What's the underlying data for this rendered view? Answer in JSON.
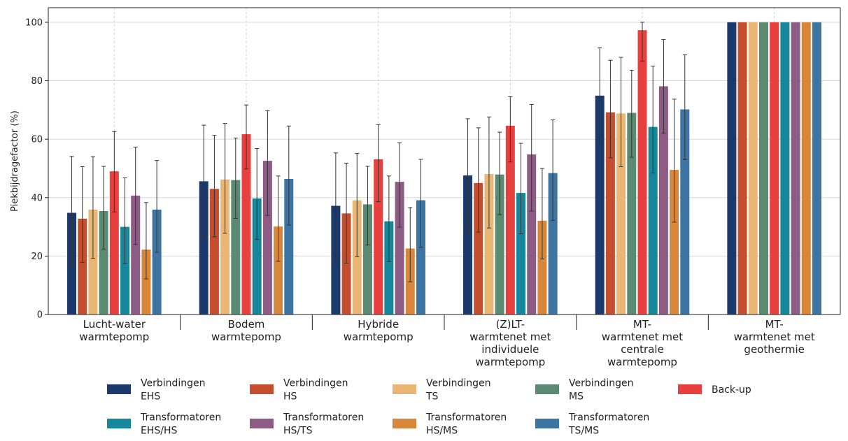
{
  "chart_data": {
    "type": "bar",
    "ylabel": "Piekbijdragefactor (%)",
    "xlabel": "",
    "ylim": [
      0,
      105
    ],
    "yticks": [
      0,
      20,
      40,
      60,
      80,
      100
    ],
    "grid": "horizontal",
    "legend_position": "bottom",
    "categories": [
      "Lucht-water warmtepomp",
      "Bodem warmtepomp",
      "Hybride warmtepomp",
      "(Z)LT-warmtenet met individuele warmtepomp",
      "MT-warmtenet met centrale warmtepomp",
      "MT-warmtenet met geothermie"
    ],
    "category_label_lines": [
      [
        "Lucht-water",
        "warmtepomp"
      ],
      [
        "Bodem",
        "warmtepomp"
      ],
      [
        "Hybride",
        "warmtepomp"
      ],
      [
        "(Z)LT-",
        "warmtenet met",
        "individuele",
        "warmtepomp"
      ],
      [
        "MT-",
        "warmtenet met",
        "centrale",
        "warmtepomp"
      ],
      [
        "MT-",
        "warmtenet met",
        "geothermie"
      ]
    ],
    "series": [
      {
        "name": "Verbindingen EHS",
        "label_lines": [
          "Verbindingen",
          "EHS"
        ],
        "color": "#1b3a6b",
        "values": [
          34.8,
          45.6,
          37.2,
          47.6,
          74.9,
          100
        ],
        "err_low": [
          15.8,
          26.6,
          19.2,
          28.6,
          58.4,
          100
        ],
        "err_high": [
          54.1,
          64.8,
          55.3,
          67.0,
          91.3,
          100
        ]
      },
      {
        "name": "Verbindingen HS",
        "label_lines": [
          "Verbindingen",
          "HS"
        ],
        "color": "#c44e2e",
        "values": [
          32.8,
          43.0,
          34.6,
          45.0,
          69.2,
          100
        ],
        "err_low": [
          17.8,
          26.6,
          17.6,
          28.2,
          53.6,
          100
        ],
        "err_high": [
          50.6,
          61.3,
          51.8,
          63.9,
          87.0,
          100
        ]
      },
      {
        "name": "Verbindingen TS",
        "label_lines": [
          "Verbindingen",
          "TS"
        ],
        "color": "#eab676",
        "values": [
          35.9,
          46.2,
          39.1,
          48.1,
          68.8,
          100
        ],
        "err_low": [
          19.2,
          27.8,
          19.8,
          29.6,
          50.6,
          100
        ],
        "err_high": [
          54.0,
          65.4,
          55.1,
          67.6,
          88.0,
          100
        ]
      },
      {
        "name": "Verbindingen MS",
        "label_lines": [
          "Verbindingen",
          "MS"
        ],
        "color": "#5a8a72",
        "values": [
          35.4,
          46.0,
          37.7,
          47.9,
          69.0,
          100
        ],
        "err_low": [
          22.4,
          32.9,
          23.8,
          34.2,
          53.8,
          100
        ],
        "err_high": [
          50.7,
          60.4,
          50.7,
          62.4,
          83.6,
          100
        ]
      },
      {
        "name": "Back-up",
        "label_lines": [
          "Back-up"
        ],
        "color": "#e8403f",
        "values": [
          49.0,
          61.7,
          53.1,
          64.6,
          97.3,
          100
        ],
        "err_low": [
          35.1,
          49.8,
          38.6,
          52.2,
          86.7,
          100
        ],
        "err_high": [
          62.6,
          71.7,
          65.0,
          74.5,
          100.0,
          100
        ]
      },
      {
        "name": "Transformatoren EHS/HS",
        "label_lines": [
          "Transformatoren",
          "EHS/HS"
        ],
        "color": "#16879a",
        "values": [
          30.0,
          39.7,
          31.9,
          41.6,
          64.2,
          100
        ],
        "err_low": [
          17.4,
          25.7,
          18.1,
          27.6,
          48.4,
          100
        ],
        "err_high": [
          46.8,
          56.8,
          47.4,
          58.6,
          85.0,
          100
        ]
      },
      {
        "name": "Transformatoren HS/TS",
        "label_lines": [
          "Transformatoren",
          "HS/TS"
        ],
        "color": "#8c5c85",
        "values": [
          40.7,
          52.6,
          45.4,
          54.8,
          78.1,
          100
        ],
        "err_low": [
          24.0,
          33.9,
          29.9,
          35.4,
          62.1,
          100
        ],
        "err_high": [
          57.3,
          69.7,
          58.8,
          71.9,
          94.1,
          100
        ]
      },
      {
        "name": "Transformatoren HS/MS",
        "label_lines": [
          "Transformatoren",
          "HS/MS"
        ],
        "color": "#d8873a",
        "values": [
          22.2,
          30.1,
          22.6,
          32.1,
          49.5,
          100
        ],
        "err_low": [
          12.2,
          18.2,
          11.2,
          19.0,
          31.6,
          100
        ],
        "err_high": [
          38.3,
          47.4,
          36.6,
          50.0,
          73.7,
          100
        ]
      },
      {
        "name": "Transformatoren TS/MS",
        "label_lines": [
          "Transformatoren",
          "TS/MS"
        ],
        "color": "#3e74a2",
        "values": [
          35.9,
          46.4,
          39.1,
          48.4,
          70.2,
          100
        ],
        "err_low": [
          21.3,
          30.6,
          23.0,
          32.2,
          53.0,
          100
        ],
        "err_high": [
          52.7,
          64.5,
          53.1,
          66.6,
          88.9,
          100
        ]
      }
    ]
  }
}
